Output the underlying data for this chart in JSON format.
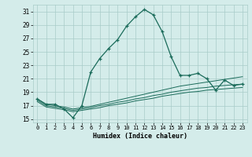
{
  "xlabel": "Humidex (Indice chaleur)",
  "x": [
    0,
    1,
    2,
    3,
    4,
    5,
    6,
    7,
    8,
    9,
    10,
    11,
    12,
    13,
    14,
    15,
    16,
    17,
    18,
    19,
    20,
    21,
    22,
    23
  ],
  "main_line": [
    18.0,
    17.2,
    17.2,
    16.5,
    15.2,
    17.0,
    22.0,
    24.0,
    25.5,
    26.8,
    28.8,
    30.2,
    31.3,
    30.5,
    28.0,
    24.3,
    21.5,
    21.5,
    21.8,
    21.0,
    19.3,
    20.8,
    20.0,
    20.2
  ],
  "line2": [
    18.0,
    17.2,
    17.0,
    16.8,
    16.5,
    16.7,
    16.9,
    17.2,
    17.5,
    17.8,
    18.1,
    18.4,
    18.7,
    19.0,
    19.3,
    19.6,
    19.9,
    20.1,
    20.3,
    20.5,
    20.7,
    20.9,
    21.1,
    21.3
  ],
  "line3": [
    17.8,
    17.0,
    16.8,
    16.6,
    16.3,
    16.5,
    16.7,
    17.0,
    17.2,
    17.5,
    17.7,
    18.0,
    18.2,
    18.5,
    18.7,
    19.0,
    19.2,
    19.4,
    19.6,
    19.7,
    19.9,
    20.0,
    20.1,
    20.2
  ],
  "line4": [
    17.6,
    16.8,
    16.6,
    16.4,
    16.1,
    16.3,
    16.5,
    16.7,
    17.0,
    17.2,
    17.4,
    17.7,
    17.9,
    18.1,
    18.4,
    18.6,
    18.8,
    19.0,
    19.1,
    19.3,
    19.4,
    19.5,
    19.6,
    19.7
  ],
  "ylim": [
    14.5,
    32.0
  ],
  "yticks": [
    15,
    17,
    19,
    21,
    23,
    25,
    27,
    29,
    31
  ],
  "xticks": [
    0,
    1,
    2,
    3,
    4,
    5,
    6,
    7,
    8,
    9,
    10,
    11,
    12,
    13,
    14,
    15,
    16,
    17,
    18,
    19,
    20,
    21,
    22,
    23
  ],
  "line_color": "#1a6b5a",
  "bg_color": "#d4ecea",
  "grid_color": "#a8ccc8"
}
